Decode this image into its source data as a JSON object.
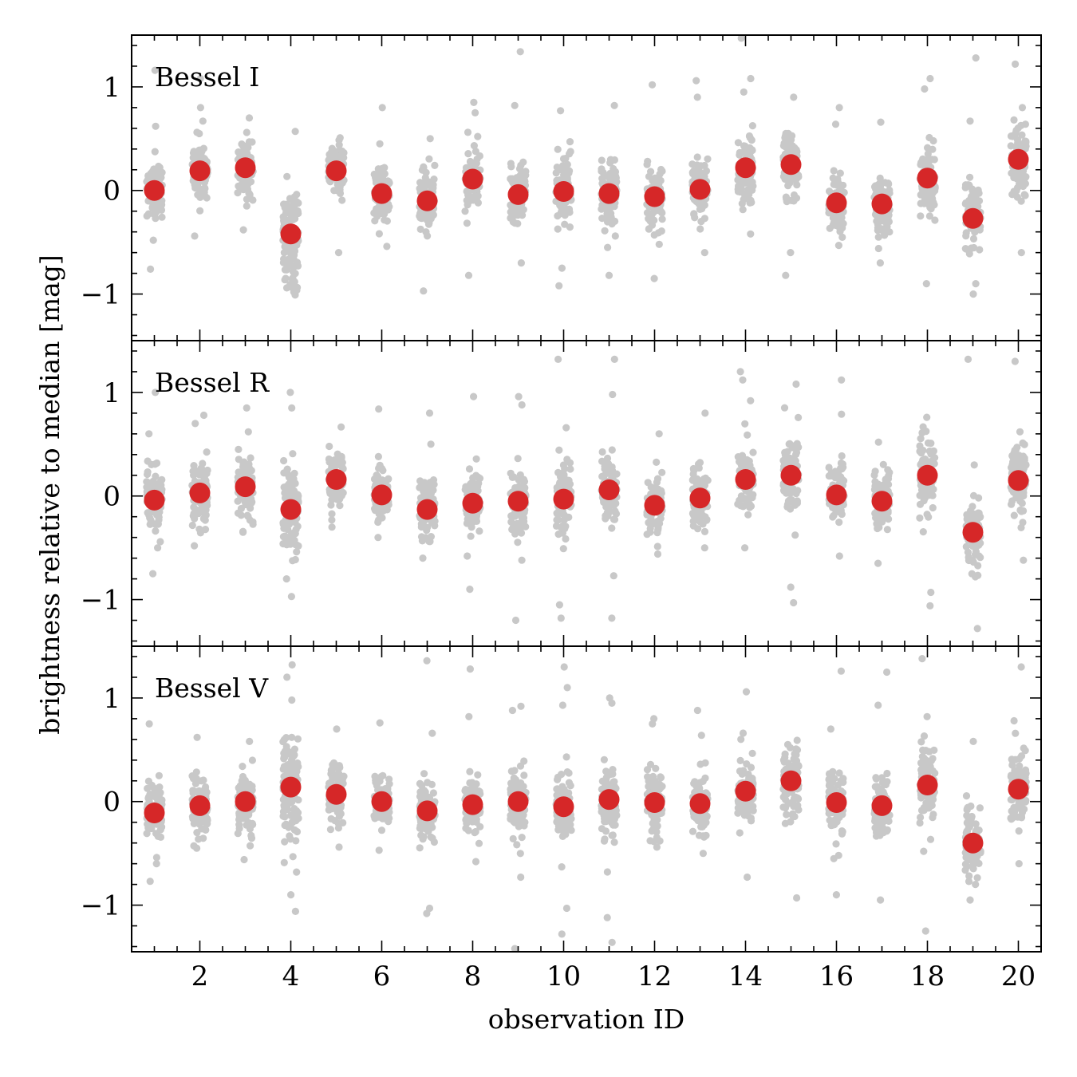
{
  "chart_data": {
    "type": "scatter",
    "xlabel": "observation ID",
    "ylabel": "brightness relative to median [mag]",
    "xlim": [
      0.5,
      20.5
    ],
    "ylim": [
      -1.45,
      1.5
    ],
    "x_ticks": [
      2,
      4,
      6,
      8,
      10,
      12,
      14,
      16,
      18,
      20
    ],
    "x_tick_labels": [
      "2",
      "4",
      "6",
      "8",
      "10",
      "12",
      "14",
      "16",
      "18",
      "20"
    ],
    "y_ticks": [
      -1,
      0,
      1
    ],
    "y_tick_labels": [
      "−1",
      "0",
      "1"
    ],
    "colors": {
      "individual": "#c8c8c8",
      "median": "#d62728"
    },
    "panels": [
      {
        "label": "Bessel I",
        "series": [
          {
            "name": "median",
            "x": [
              1,
              2,
              3,
              4,
              5,
              6,
              7,
              8,
              9,
              10,
              11,
              12,
              13,
              14,
              15,
              16,
              17,
              18,
              19,
              20
            ],
            "values": [
              0.0,
              0.19,
              0.22,
              -0.42,
              0.19,
              -0.03,
              -0.1,
              0.11,
              -0.04,
              -0.01,
              -0.03,
              -0.06,
              0.01,
              0.22,
              0.25,
              -0.12,
              -0.13,
              0.12,
              -0.27,
              0.3
            ]
          }
        ],
        "spread": [
          0.18,
          0.2,
          0.2,
          0.28,
          0.18,
          0.18,
          0.2,
          0.2,
          0.2,
          0.22,
          0.2,
          0.2,
          0.2,
          0.22,
          0.24,
          0.2,
          0.2,
          0.24,
          0.22,
          0.22
        ],
        "outliers": [
          [
            1,
            1.16
          ],
          [
            1,
            0.62
          ],
          [
            1,
            -0.48
          ],
          [
            1,
            -0.76
          ],
          [
            2,
            1.08
          ],
          [
            2,
            0.8
          ],
          [
            2,
            0.67
          ],
          [
            2,
            -0.44
          ],
          [
            3,
            0.7
          ],
          [
            3,
            0.56
          ],
          [
            3,
            -0.38
          ],
          [
            4,
            0.57
          ],
          [
            4,
            -0.72
          ],
          [
            4,
            -0.9
          ],
          [
            4,
            -0.98
          ],
          [
            5,
            0.44
          ],
          [
            5,
            -0.6
          ],
          [
            6,
            0.8
          ],
          [
            6,
            0.45
          ],
          [
            6,
            -0.54
          ],
          [
            7,
            0.5
          ],
          [
            7,
            -0.4
          ],
          [
            7,
            -0.97
          ],
          [
            8,
            0.85
          ],
          [
            8,
            0.75
          ],
          [
            8,
            -0.82
          ],
          [
            9,
            1.34
          ],
          [
            9,
            0.82
          ],
          [
            9,
            -0.7
          ],
          [
            10,
            0.77
          ],
          [
            10,
            -0.75
          ],
          [
            10,
            -0.92
          ],
          [
            11,
            0.82
          ],
          [
            11,
            -0.55
          ],
          [
            11,
            -0.82
          ],
          [
            12,
            1.02
          ],
          [
            12,
            -0.52
          ],
          [
            12,
            -0.85
          ],
          [
            13,
            1.06
          ],
          [
            13,
            0.9
          ],
          [
            13,
            -0.6
          ],
          [
            14,
            1.47
          ],
          [
            14,
            1.08
          ],
          [
            14,
            0.95
          ],
          [
            14,
            -0.42
          ],
          [
            15,
            0.9
          ],
          [
            15,
            -0.6
          ],
          [
            15,
            -0.82
          ],
          [
            16,
            0.8
          ],
          [
            16,
            0.64
          ],
          [
            16,
            -0.53
          ],
          [
            17,
            0.66
          ],
          [
            17,
            -0.56
          ],
          [
            17,
            -0.7
          ],
          [
            18,
            1.08
          ],
          [
            18,
            0.98
          ],
          [
            18,
            -0.9
          ],
          [
            19,
            1.28
          ],
          [
            19,
            0.67
          ],
          [
            19,
            -0.9
          ],
          [
            19,
            -1.0
          ],
          [
            20,
            1.22
          ],
          [
            20,
            0.8
          ],
          [
            20,
            -0.6
          ]
        ]
      },
      {
        "label": "Bessel R",
        "series": [
          {
            "name": "median",
            "x": [
              1,
              2,
              3,
              4,
              5,
              6,
              7,
              8,
              9,
              10,
              11,
              12,
              13,
              14,
              15,
              16,
              17,
              18,
              19,
              20
            ],
            "values": [
              -0.04,
              0.03,
              0.09,
              -0.13,
              0.16,
              0.01,
              -0.13,
              -0.07,
              -0.05,
              -0.03,
              0.06,
              -0.09,
              -0.02,
              0.16,
              0.2,
              0.01,
              -0.05,
              0.2,
              -0.35,
              0.15
            ]
          }
        ],
        "spread": [
          0.2,
          0.2,
          0.2,
          0.3,
          0.18,
          0.18,
          0.2,
          0.2,
          0.2,
          0.22,
          0.2,
          0.2,
          0.2,
          0.22,
          0.24,
          0.18,
          0.2,
          0.24,
          0.22,
          0.22
        ],
        "outliers": [
          [
            1,
            1.0
          ],
          [
            1,
            0.6
          ],
          [
            1,
            -0.5
          ],
          [
            1,
            -0.75
          ],
          [
            2,
            0.78
          ],
          [
            2,
            0.7
          ],
          [
            2,
            -0.48
          ],
          [
            3,
            0.85
          ],
          [
            3,
            0.62
          ],
          [
            3,
            -0.35
          ],
          [
            4,
            1.0
          ],
          [
            4,
            0.85
          ],
          [
            4,
            -0.8
          ],
          [
            4,
            -0.97
          ],
          [
            5,
            0.38
          ],
          [
            5,
            -0.3
          ],
          [
            6,
            0.84
          ],
          [
            6,
            -0.4
          ],
          [
            7,
            0.8
          ],
          [
            7,
            0.5
          ],
          [
            7,
            -0.6
          ],
          [
            8,
            0.96
          ],
          [
            8,
            -0.58
          ],
          [
            8,
            -0.9
          ],
          [
            9,
            0.96
          ],
          [
            9,
            0.88
          ],
          [
            9,
            -0.62
          ],
          [
            9,
            -1.2
          ],
          [
            10,
            1.32
          ],
          [
            10,
            0.66
          ],
          [
            10,
            -1.05
          ],
          [
            10,
            -1.18
          ],
          [
            11,
            1.32
          ],
          [
            11,
            0.98
          ],
          [
            11,
            -0.77
          ],
          [
            11,
            -1.18
          ],
          [
            12,
            0.6
          ],
          [
            12,
            -0.56
          ],
          [
            13,
            0.8
          ],
          [
            13,
            -0.5
          ],
          [
            14,
            1.2
          ],
          [
            14,
            1.12
          ],
          [
            14,
            0.92
          ],
          [
            14,
            -0.5
          ],
          [
            15,
            1.08
          ],
          [
            15,
            -0.88
          ],
          [
            15,
            -1.03
          ],
          [
            16,
            1.12
          ],
          [
            16,
            0.79
          ],
          [
            16,
            -0.58
          ],
          [
            17,
            0.52
          ],
          [
            17,
            -0.65
          ],
          [
            18,
            0.76
          ],
          [
            18,
            -0.93
          ],
          [
            18,
            -1.06
          ],
          [
            19,
            1.32
          ],
          [
            19,
            0.3
          ],
          [
            19,
            -0.78
          ],
          [
            19,
            -1.28
          ],
          [
            20,
            1.3
          ],
          [
            20,
            0.62
          ],
          [
            20,
            -0.62
          ]
        ]
      },
      {
        "label": "Bessel V",
        "series": [
          {
            "name": "median",
            "x": [
              1,
              2,
              3,
              4,
              5,
              6,
              7,
              8,
              9,
              10,
              11,
              12,
              13,
              14,
              15,
              16,
              17,
              18,
              19,
              20
            ],
            "values": [
              -0.11,
              -0.04,
              0.0,
              0.14,
              0.07,
              0.0,
              -0.09,
              -0.03,
              0.0,
              -0.05,
              0.02,
              -0.01,
              -0.02,
              0.1,
              0.2,
              -0.01,
              -0.04,
              0.16,
              -0.4,
              0.12
            ]
          }
        ],
        "spread": [
          0.2,
          0.2,
          0.2,
          0.32,
          0.2,
          0.18,
          0.2,
          0.2,
          0.2,
          0.22,
          0.22,
          0.2,
          0.2,
          0.22,
          0.24,
          0.2,
          0.2,
          0.24,
          0.22,
          0.22
        ],
        "outliers": [
          [
            1,
            0.75
          ],
          [
            1,
            -0.6
          ],
          [
            1,
            -0.77
          ],
          [
            2,
            0.62
          ],
          [
            2,
            -0.45
          ],
          [
            3,
            0.58
          ],
          [
            3,
            -0.56
          ],
          [
            4,
            1.32
          ],
          [
            4,
            1.2
          ],
          [
            4,
            0.98
          ],
          [
            4,
            -0.9
          ],
          [
            4,
            -1.06
          ],
          [
            5,
            0.7
          ],
          [
            5,
            -0.44
          ],
          [
            6,
            0.76
          ],
          [
            6,
            -0.47
          ],
          [
            7,
            1.36
          ],
          [
            7,
            0.66
          ],
          [
            7,
            -1.03
          ],
          [
            7,
            -1.08
          ],
          [
            8,
            1.28
          ],
          [
            8,
            0.82
          ],
          [
            8,
            -0.58
          ],
          [
            9,
            0.92
          ],
          [
            9,
            0.88
          ],
          [
            9,
            -0.73
          ],
          [
            9,
            -1.42
          ],
          [
            10,
            1.3
          ],
          [
            10,
            1.1
          ],
          [
            10,
            0.93
          ],
          [
            10,
            -1.03
          ],
          [
            10,
            -1.28
          ],
          [
            11,
            1.0
          ],
          [
            11,
            0.95
          ],
          [
            11,
            -0.68
          ],
          [
            11,
            -1.12
          ],
          [
            11,
            -1.36
          ],
          [
            12,
            0.8
          ],
          [
            12,
            0.75
          ],
          [
            12,
            -0.44
          ],
          [
            13,
            0.88
          ],
          [
            13,
            0.64
          ],
          [
            13,
            -0.5
          ],
          [
            14,
            1.06
          ],
          [
            14,
            0.6
          ],
          [
            14,
            -0.73
          ],
          [
            15,
            0.52
          ],
          [
            15,
            -0.93
          ],
          [
            16,
            1.26
          ],
          [
            16,
            0.7
          ],
          [
            16,
            -0.52
          ],
          [
            16,
            -0.9
          ],
          [
            17,
            1.25
          ],
          [
            17,
            0.93
          ],
          [
            17,
            -0.95
          ],
          [
            18,
            1.38
          ],
          [
            18,
            0.82
          ],
          [
            18,
            -0.48
          ],
          [
            18,
            -1.25
          ],
          [
            19,
            0.58
          ],
          [
            19,
            -0.8
          ],
          [
            19,
            -0.95
          ],
          [
            20,
            1.3
          ],
          [
            20,
            0.78
          ],
          [
            20,
            -0.6
          ]
        ]
      }
    ]
  }
}
